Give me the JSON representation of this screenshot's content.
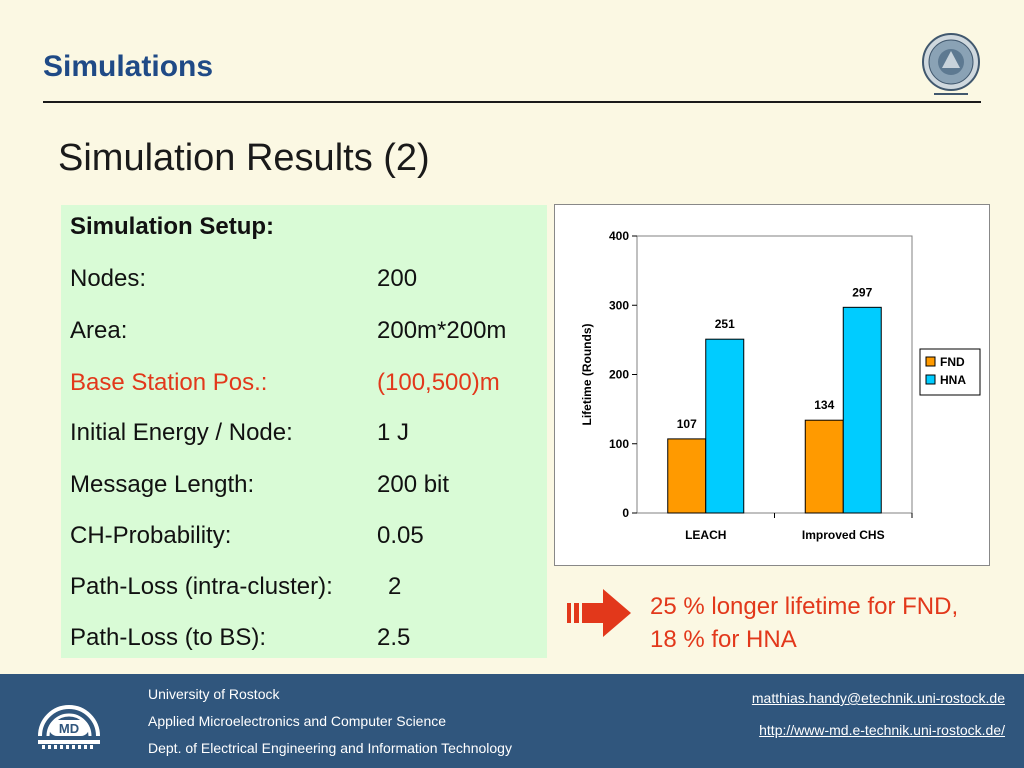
{
  "header": {
    "title": "Simulations"
  },
  "slide": {
    "subtitle": "Simulation Results (2)"
  },
  "setup": {
    "heading": "Simulation Setup:",
    "rows": [
      {
        "label": "Nodes:",
        "value": "200"
      },
      {
        "label": "Area:",
        "value": "200m*200m"
      },
      {
        "label": "Base Station Pos.:",
        "value": "(100,500)m"
      },
      {
        "label": "Initial Energy / Node:",
        "value": "1 J"
      },
      {
        "label": "Message Length:",
        "value": "200 bit"
      },
      {
        "label": "CH-Probability:",
        "value": "0.05"
      },
      {
        "label": "Path-Loss (intra-cluster):",
        "value": "2"
      },
      {
        "label": "Path-Loss (to BS):",
        "value": "2.5"
      }
    ],
    "highlight_color": "#e2381b"
  },
  "chart_data": {
    "type": "bar",
    "categories": [
      "LEACH",
      "Improved CHS"
    ],
    "series": [
      {
        "name": "FND",
        "values": [
          107,
          134
        ],
        "color": "#ff9a00"
      },
      {
        "name": "HNA",
        "values": [
          251,
          297
        ],
        "color": "#00ccff"
      }
    ],
    "ylabel": "Lifetime (Rounds)",
    "xlabel": "",
    "ylim": [
      0,
      400
    ],
    "yticks": [
      0,
      100,
      200,
      300,
      400
    ],
    "legend_position": "right",
    "grid": false
  },
  "note": {
    "icon": "arrow-right-icon",
    "text": "25 % longer lifetime for FND, 18 % for HNA"
  },
  "footer": {
    "lines": [
      "University of Rostock",
      "Applied Microelectronics and Computer Science",
      "Dept. of Electrical Engineering and Information Technology"
    ],
    "email": "matthias.handy@etechnik.uni-rostock.de",
    "url": "http://www-md.e-technik.uni-rostock.de/",
    "logo_text": "MD"
  },
  "colors": {
    "background": "#fbf8e3",
    "title": "#1f4a86",
    "accent": "#e2381b",
    "setup_box": "#d9fbd6",
    "footer": "#30567d"
  }
}
